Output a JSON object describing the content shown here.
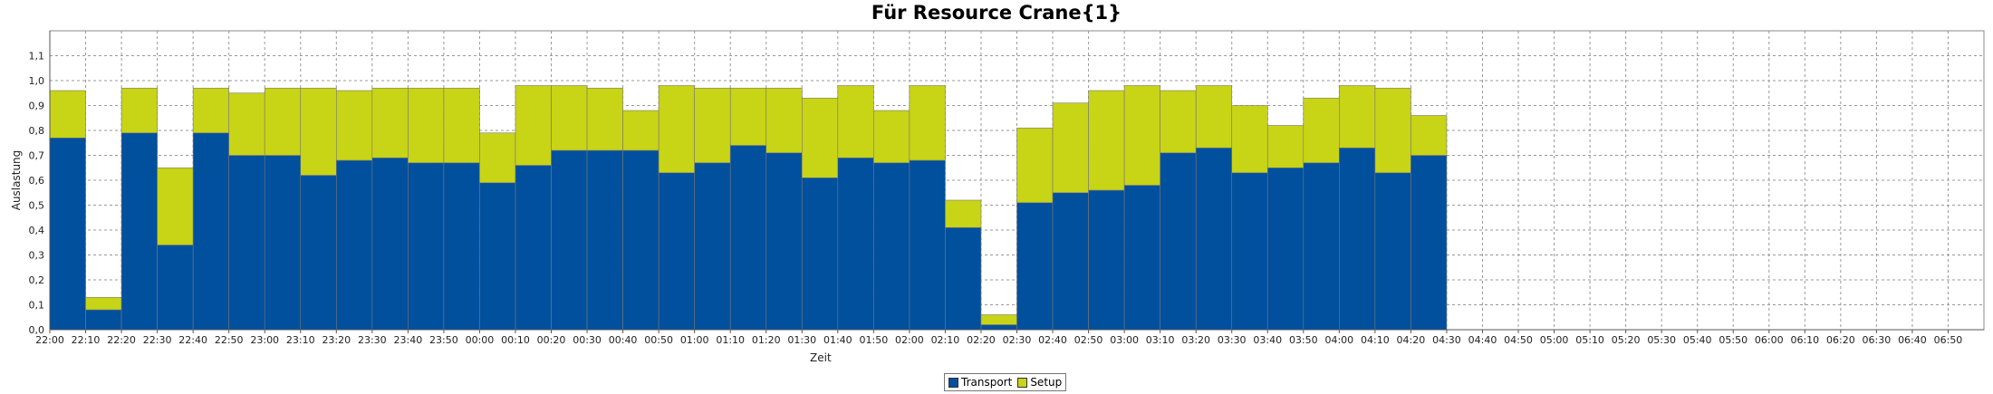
{
  "chart_data": {
    "type": "bar",
    "stacked": true,
    "title": "Für Resource Crane{1}",
    "xlabel": "Zeit",
    "ylabel": "Auslastung",
    "ylim": [
      0,
      1.2
    ],
    "yticks": [
      "0,0",
      "0,1",
      "0,2",
      "0,3",
      "0,4",
      "0,5",
      "0,6",
      "0,7",
      "0,8",
      "0,9",
      "1,0",
      "1,1"
    ],
    "xticks": [
      "22:00",
      "22:10",
      "22:20",
      "22:30",
      "22:40",
      "22:50",
      "23:00",
      "23:10",
      "23:20",
      "23:30",
      "23:40",
      "23:50",
      "00:00",
      "00:10",
      "00:20",
      "00:30",
      "00:40",
      "00:50",
      "01:00",
      "01:10",
      "01:20",
      "01:30",
      "01:40",
      "01:50",
      "02:00",
      "02:10",
      "02:20",
      "02:30",
      "02:40",
      "02:50",
      "03:00",
      "03:10",
      "03:20",
      "03:30",
      "03:40",
      "03:50",
      "04:00",
      "04:10",
      "04:20",
      "04:30",
      "04:40",
      "04:50",
      "05:00",
      "05:10",
      "05:20",
      "05:30",
      "05:40",
      "05:50",
      "06:00",
      "06:10",
      "06:20",
      "06:30",
      "06:40",
      "06:50"
    ],
    "categories": [
      "22:00",
      "22:10",
      "22:20",
      "22:30",
      "22:40",
      "22:50",
      "23:00",
      "23:10",
      "23:20",
      "23:30",
      "23:40",
      "23:50",
      "00:00",
      "00:10",
      "00:20",
      "00:30",
      "00:40",
      "00:50",
      "01:00",
      "01:10",
      "01:20",
      "01:30",
      "01:40",
      "01:50",
      "02:00",
      "02:10",
      "02:20",
      "02:30",
      "02:40",
      "02:50",
      "03:00",
      "03:10",
      "03:20",
      "03:30",
      "03:40",
      "03:50",
      "04:00",
      "04:10",
      "04:20"
    ],
    "series": [
      {
        "name": "Transport",
        "color": "#00509e",
        "values": [
          0.77,
          0.08,
          0.79,
          0.34,
          0.79,
          0.7,
          0.7,
          0.62,
          0.68,
          0.69,
          0.67,
          0.67,
          0.59,
          0.66,
          0.72,
          0.72,
          0.72,
          0.63,
          0.67,
          0.74,
          0.71,
          0.61,
          0.69,
          0.67,
          0.68,
          0.41,
          0.02,
          0.51,
          0.55,
          0.56,
          0.58,
          0.71,
          0.73,
          0.63,
          0.65,
          0.67,
          0.73,
          0.63,
          0.7
        ]
      },
      {
        "name": "Setup",
        "color": "#c8d416",
        "values": [
          0.19,
          0.05,
          0.18,
          0.31,
          0.18,
          0.25,
          0.27,
          0.35,
          0.28,
          0.28,
          0.3,
          0.3,
          0.2,
          0.32,
          0.26,
          0.25,
          0.16,
          0.35,
          0.3,
          0.23,
          0.26,
          0.32,
          0.29,
          0.21,
          0.3,
          0.11,
          0.04,
          0.3,
          0.36,
          0.4,
          0.4,
          0.25,
          0.25,
          0.27,
          0.17,
          0.26,
          0.25,
          0.34,
          0.16
        ]
      }
    ],
    "grid": true,
    "legend_position": "bottom-center"
  }
}
